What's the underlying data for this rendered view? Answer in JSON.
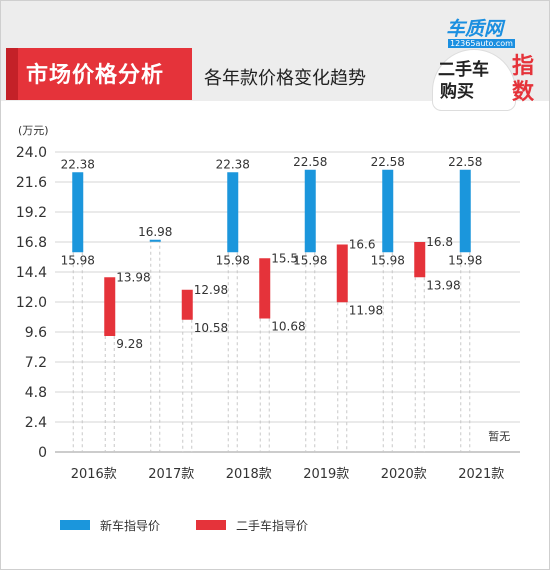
{
  "header": {
    "title": "市场价格分析",
    "subtitle": "各年款价格变化趋势",
    "logo_site": "车质网",
    "logo_url": "12365auto.com",
    "logo_line1": "二手车",
    "logo_line2": "购买",
    "logo_accent1": "指",
    "logo_accent2": "数"
  },
  "chart_data": {
    "type": "bar",
    "subtype": "floating-range",
    "unit": "(万元)",
    "categories": [
      "2016款",
      "2017款",
      "2018款",
      "2019款",
      "2020款",
      "2021款"
    ],
    "ylim": [
      0,
      24
    ],
    "yticks": [
      "24.0",
      "21.6",
      "19.2",
      "16.8",
      "14.4",
      "12.0",
      "9.6",
      "7.2",
      "4.8",
      "2.4",
      "0"
    ],
    "grid": true,
    "legend_position": "bottom-left",
    "series": [
      {
        "name": "新车指导价",
        "color": "#1b96dc",
        "ranges": [
          [
            15.98,
            22.38
          ],
          [
            16.98,
            16.98
          ],
          [
            15.98,
            22.38
          ],
          [
            15.98,
            22.58
          ],
          [
            15.98,
            22.58
          ],
          [
            15.98,
            22.58
          ]
        ],
        "low_labels": [
          "15.98",
          "",
          "15.98",
          "15.98",
          "15.98",
          "15.98"
        ],
        "high_labels": [
          "22.38",
          "16.98",
          "22.38",
          "22.58",
          "22.58",
          "22.58"
        ]
      },
      {
        "name": "二手车指导价",
        "color": "#e5333a",
        "ranges": [
          [
            9.28,
            13.98
          ],
          [
            10.58,
            12.98
          ],
          [
            10.68,
            15.5
          ],
          [
            11.98,
            16.6
          ],
          [
            13.98,
            16.8
          ],
          null
        ],
        "low_labels": [
          "9.28",
          "10.58",
          "10.68",
          "11.98",
          "13.98",
          ""
        ],
        "high_labels": [
          "13.98",
          "12.98",
          "15.5",
          "16.6",
          "16.8",
          ""
        ]
      }
    ],
    "annotations": [
      {
        "category": "2021款",
        "text": "暂无"
      }
    ]
  }
}
